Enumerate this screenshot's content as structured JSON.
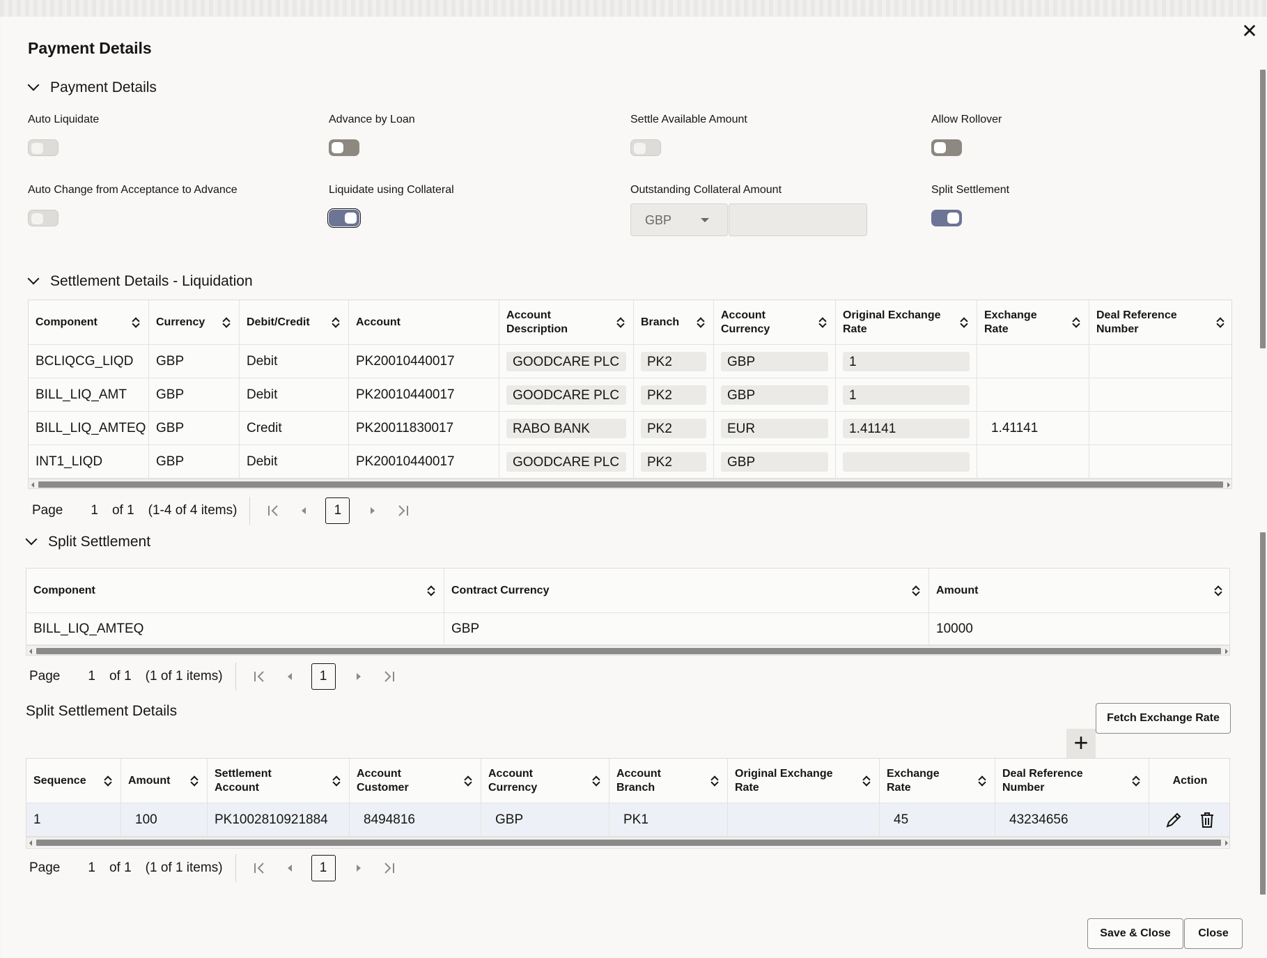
{
  "dialog": {
    "title": "Payment Details",
    "close_icon": "close-icon"
  },
  "payment_details": {
    "section_title": "Payment Details",
    "fields": {
      "auto_liquidate": "Auto Liquidate",
      "advance_by_loan": "Advance by Loan",
      "settle_available_amount": "Settle Available Amount",
      "allow_rollover": "Allow Rollover",
      "auto_change": "Auto Change from Acceptance to Advance",
      "liquidate_using_collateral": "Liquidate using Collateral",
      "outstanding_collateral_amount": "Outstanding Collateral Amount",
      "split_settlement": "Split Settlement"
    },
    "collateral_currency": "GBP",
    "collateral_amount": ""
  },
  "settlement_liquidation": {
    "section_title": "Settlement Details - Liquidation",
    "columns": [
      "Component",
      "Currency",
      "Debit/Credit",
      "Account",
      "Account Description",
      "Branch",
      "Account Currency",
      "Original Exchange Rate",
      "Exchange Rate",
      "Deal Reference Number"
    ],
    "rows": [
      [
        "BCLIQCG_LIQD",
        "GBP",
        "Debit",
        "PK20010440017",
        "GOODCARE PLC",
        "PK2",
        "GBP",
        "1",
        "",
        ""
      ],
      [
        "BILL_LIQ_AMT",
        "GBP",
        "Debit",
        "PK20010440017",
        "GOODCARE PLC",
        "PK2",
        "GBP",
        "1",
        "",
        ""
      ],
      [
        "BILL_LIQ_AMTEQ",
        "GBP",
        "Credit",
        "PK20011830017",
        "RABO BANK",
        "PK2",
        "EUR",
        "1.41141",
        "1.41141",
        ""
      ],
      [
        "INT1_LIQD",
        "GBP",
        "Debit",
        "PK20010440017",
        "GOODCARE PLC",
        "PK2",
        "GBP",
        "",
        "",
        ""
      ]
    ],
    "pager": {
      "page_label": "Page",
      "page": "1",
      "of": "of 1",
      "items": "(1-4 of 4 items)",
      "current": "1"
    }
  },
  "split_settlement": {
    "section_title": "Split Settlement",
    "columns": [
      "Component",
      "Contract Currency",
      "Amount"
    ],
    "rows": [
      [
        "BILL_LIQ_AMTEQ",
        "GBP",
        "10000"
      ]
    ],
    "pager": {
      "page_label": "Page",
      "page": "1",
      "of": "of 1",
      "items": "(1 of 1 items)",
      "current": "1"
    }
  },
  "split_settlement_details": {
    "section_title": "Split Settlement Details",
    "fetch_button": "Fetch Exchange Rate",
    "add_button": "+",
    "columns": [
      "Sequence",
      "Amount",
      "Settlement Account",
      "Account Customer",
      "Account Currency",
      "Account Branch",
      "Original Exchange Rate",
      "Exchange Rate",
      "Deal Reference Number",
      "Action"
    ],
    "rows": [
      [
        "1",
        "100",
        "PK1002810921884",
        "8494816",
        "GBP",
        "PK1",
        "",
        "45",
        "43234656",
        ""
      ]
    ],
    "pager": {
      "page_label": "Page",
      "page": "1",
      "of": "of 1",
      "items": "(1 of 1 items)",
      "current": "1"
    }
  },
  "footer": {
    "save_close": "Save & Close",
    "close": "Close"
  },
  "colors": {
    "toggle_on": "#6c7595",
    "toggle_off": "#8d8880",
    "scroll_thumb": "#8a8a8a"
  }
}
